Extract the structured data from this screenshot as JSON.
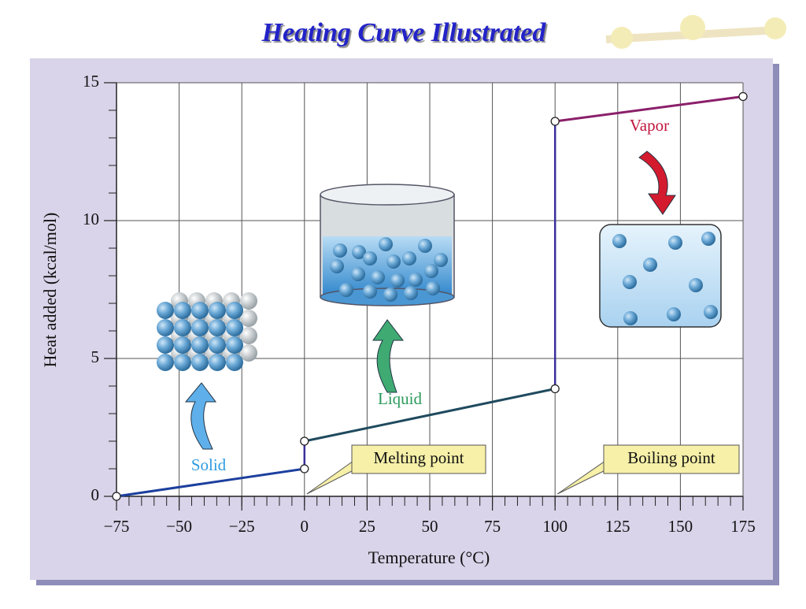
{
  "chart_data": {
    "type": "line",
    "title": "Heating Curve Illustrated",
    "xlabel": "Temperature (°C)",
    "ylabel": "Heat added (kcal/mol)",
    "series": [
      {
        "name": "Solid",
        "color": "#1c3f9e",
        "label_color": "#2f9be0",
        "x": [
          -75,
          0
        ],
        "values": [
          0,
          1
        ]
      },
      {
        "name": "Liquid",
        "color": "#1f4a5e",
        "label_color": "#2a9a5a",
        "x": [
          0,
          100
        ],
        "values": [
          2,
          3.9
        ]
      },
      {
        "name": "Vapor",
        "color": "#8a1f6a",
        "label_color": "#c0163c",
        "x": [
          100,
          175
        ],
        "values": [
          13.6,
          14.5
        ]
      }
    ],
    "connector_color": "#3a2f9a",
    "annotations": [
      "Melting point",
      "Boiling point"
    ],
    "xlim": [
      -75,
      175
    ],
    "xticks": [
      {
        "value": -75,
        "label": "−75"
      },
      {
        "value": -50,
        "label": "−50"
      },
      {
        "value": -25,
        "label": "−25"
      },
      0,
      25,
      50,
      75,
      100,
      125,
      150,
      175
    ],
    "ylim": [
      0,
      15
    ],
    "yticks": [
      0,
      5,
      10,
      15
    ],
    "xminor": 5,
    "yminor": 1,
    "grid": true
  }
}
